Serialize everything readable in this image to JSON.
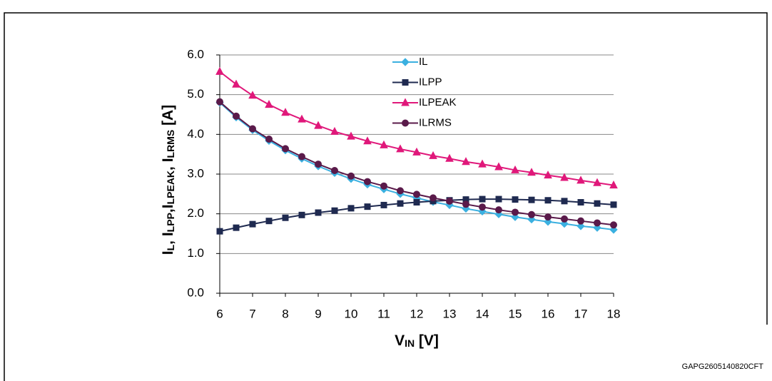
{
  "chart_data": {
    "type": "line",
    "x": [
      6,
      6.5,
      7,
      7.5,
      8,
      8.5,
      9,
      9.5,
      10,
      10.5,
      11,
      11.5,
      12,
      12.5,
      13,
      13.5,
      14,
      14.5,
      15,
      15.5,
      16,
      16.5,
      17,
      17.5,
      18
    ],
    "series": [
      {
        "name": "IL",
        "color": "#3bb0e0",
        "marker": "diamond",
        "values": [
          4.8,
          4.43,
          4.11,
          3.84,
          3.6,
          3.39,
          3.2,
          3.03,
          2.88,
          2.74,
          2.62,
          2.5,
          2.4,
          2.3,
          2.22,
          2.13,
          2.06,
          1.99,
          1.92,
          1.86,
          1.8,
          1.75,
          1.69,
          1.65,
          1.6
        ]
      },
      {
        "name": "ILPP",
        "color": "#1f2a50",
        "marker": "square",
        "values": [
          1.56,
          1.65,
          1.74,
          1.82,
          1.9,
          1.97,
          2.03,
          2.08,
          2.14,
          2.18,
          2.22,
          2.26,
          2.29,
          2.32,
          2.34,
          2.36,
          2.37,
          2.37,
          2.36,
          2.35,
          2.34,
          2.32,
          2.29,
          2.26,
          2.23
        ]
      },
      {
        "name": "ILPEAK",
        "color": "#e0187a",
        "marker": "triangle",
        "values": [
          5.58,
          5.26,
          4.98,
          4.75,
          4.55,
          4.38,
          4.22,
          4.07,
          3.95,
          3.83,
          3.73,
          3.63,
          3.55,
          3.46,
          3.39,
          3.31,
          3.25,
          3.18,
          3.1,
          3.04,
          2.97,
          2.91,
          2.84,
          2.78,
          2.72
        ]
      },
      {
        "name": "ILRMS",
        "color": "#5a1a4a",
        "marker": "circle",
        "values": [
          4.82,
          4.46,
          4.14,
          3.88,
          3.64,
          3.44,
          3.25,
          3.09,
          2.95,
          2.81,
          2.7,
          2.58,
          2.49,
          2.4,
          2.32,
          2.24,
          2.17,
          2.1,
          2.04,
          1.98,
          1.92,
          1.87,
          1.82,
          1.77,
          1.72
        ]
      }
    ],
    "xlim": [
      6,
      18
    ],
    "xticks": [
      6,
      7,
      8,
      9,
      10,
      11,
      12,
      13,
      14,
      15,
      16,
      17,
      18
    ],
    "ylim": [
      0,
      6
    ],
    "yticks": [
      {
        "value": 0,
        "label": "0.0"
      },
      {
        "value": 1,
        "label": "1.0"
      },
      {
        "value": 2,
        "label": "2.0"
      },
      {
        "value": 3,
        "label": "3.0"
      },
      {
        "value": 4,
        "label": "4.0"
      },
      {
        "value": 5,
        "label": "5.0"
      },
      {
        "value": 6,
        "label": "6.0"
      }
    ],
    "grid": true,
    "legend": "top-center",
    "x_label": [
      "V",
      "IN",
      " [V]"
    ],
    "y_label": [
      "I",
      "L",
      ", I",
      "LPP",
      ",I",
      "LPEAK",
      ", I",
      "LRMS",
      " [A]"
    ],
    "footnote": "GAPG2605140820CFT"
  }
}
